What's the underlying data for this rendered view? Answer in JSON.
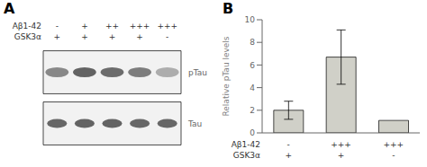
{
  "chart_data": [
    {
      "type": "heatmap",
      "title": "A",
      "categories": [
        [
          "-",
          "+"
        ],
        [
          "+",
          "+"
        ],
        [
          "++",
          "+"
        ],
        [
          "+++",
          "+"
        ],
        [
          "+++",
          "-"
        ]
      ],
      "annotations": [
        "Aβ1-42",
        "GSK3α"
      ],
      "series": [
        {
          "name": "pTau",
          "values": [
            0.55,
            0.72,
            0.68,
            0.6,
            0.38
          ]
        },
        {
          "name": "Tau",
          "values": [
            0.7,
            0.72,
            0.72,
            0.7,
            0.7
          ]
        }
      ],
      "grid": false
    },
    {
      "type": "bar",
      "title": "B",
      "categories": [
        [
          "-",
          "+"
        ],
        [
          "+++",
          "+"
        ],
        [
          "+++",
          "-"
        ]
      ],
      "annotations": [
        "Aβ1-42",
        "GSK3α"
      ],
      "values": [
        2.0,
        6.7,
        1.1
      ],
      "errors": [
        0.8,
        2.4,
        0.0
      ],
      "color": "#d0d0c8",
      "ylabel": "Relative pTau levels",
      "ylim": [
        0,
        10
      ],
      "yticks": [
        0,
        2,
        4,
        6,
        8,
        10
      ],
      "grid": false
    }
  ]
}
